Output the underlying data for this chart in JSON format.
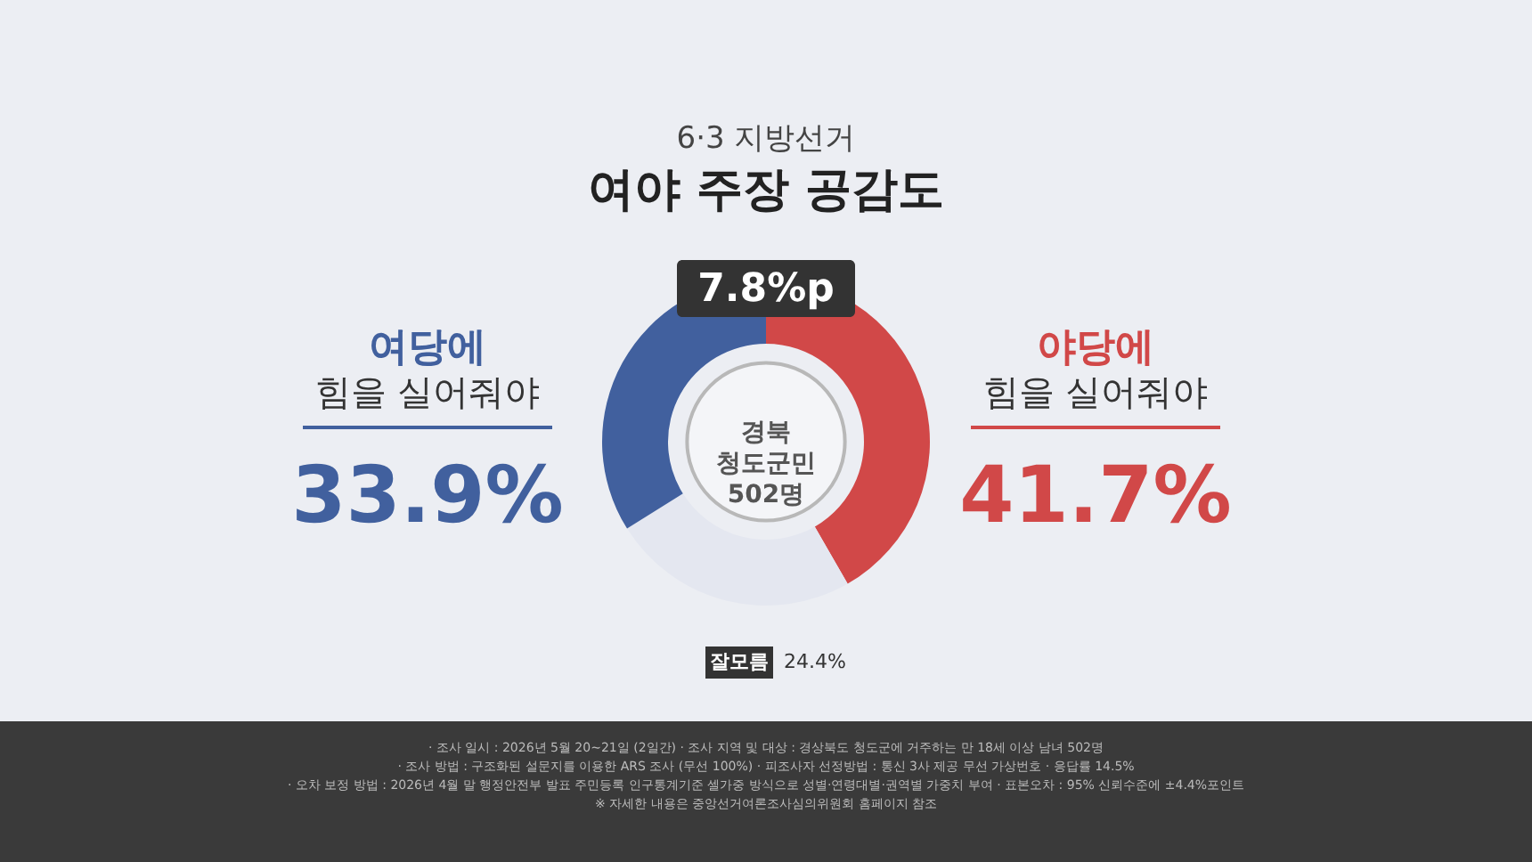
{
  "chart_data": {
    "type": "donut",
    "subtitle": "6·3 지방선거",
    "title": "여야 주장 공감도",
    "categories": [
      "야당에 힘을 실어줘야",
      "잘모름",
      "여당에 힘을 실어줘야"
    ],
    "values": [
      41.7,
      24.4,
      33.9
    ],
    "colors": [
      "#d14848",
      "#e4e7f0",
      "#41609e"
    ],
    "value_labels": [
      "41.7%",
      "24.4%",
      "33.9%"
    ],
    "annotations": [
      "7.8%p",
      "경북\n청도군민\n502명",
      "· 조사 일시 : 2026년 5월 20~21일 (2일간)  · 조사 지역 및 대상 : 경상북도 청도군에 거주하는 만 18세 이상 남녀 502명",
      "· 조사 방법 : 구조화된 설문지를 이용한 ARS 조사 (무선 100%)  · 피조사자 선정방법 : 통신 3사 제공 무선 가상번호  · 응답률 14.5%",
      "· 오차 보정 방법 : 2026년 4월 말 행정안전부 발표 주민등록 인구통계기준 셀가중 방식으로 성별·연령대별·권역별 가중치 부여  · 표본오차 : 95% 신뢰수준에 ±4.4%포인트",
      "※ 자세한 내용은 중앙선거여론조사심의위원회 홈페이지 참조"
    ]
  }
}
